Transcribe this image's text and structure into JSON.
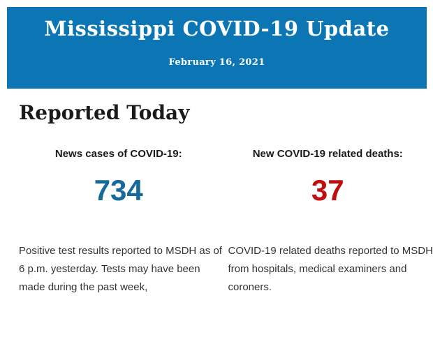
{
  "banner": {
    "title": "Mississippi COVID-19 Update",
    "date": "February 16, 2021",
    "bg_color": "#0C76B5",
    "text_color": "#FFFFFF"
  },
  "page": {
    "heading": "Reported Today",
    "background_color": "#FFFFFF",
    "heading_color": "#1A1A1A",
    "body_text_color": "#333333"
  },
  "stats": [
    {
      "label": "News cases of COVID-19:",
      "value": "734",
      "value_color": "#17699C",
      "description": "Positive test results reported to MSDH as of 6 p.m. yesterday. Tests may have been made during the past week,"
    },
    {
      "label": "New COVID-19 related deaths:",
      "value": "37",
      "value_color": "#C00D0D",
      "description": "COVID-19 related deaths reported to MSDH from hospitals, medical examiners and coroners."
    }
  ]
}
